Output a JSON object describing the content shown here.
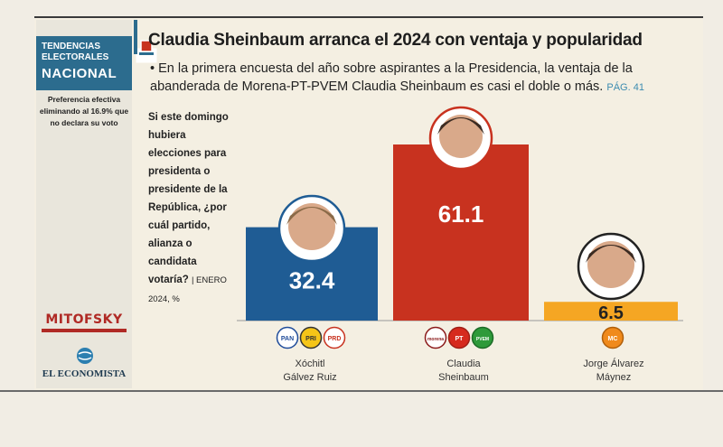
{
  "brand": {
    "line1": "TENDENCIAS",
    "line2": "ELECTORALES",
    "line3": "NACIONAL"
  },
  "preference_note": "Preferencia efectiva eliminando al 16.9% que no declara su voto",
  "title": "Claudia Sheinbaum arranca el 2024 con ventaja y popularidad",
  "subtitle": "• En la primera encuesta del año sobre aspirantes a la Presidencia, la ventaja de la abanderada de Morena-PT-PVEM Claudia Sheinbaum es casi el doble o más.",
  "page_ref": "PÁG. 41",
  "question": "Si este domingo hubiera elecciones para presidenta o presidente de la República, ¿por cuál partido, alianza o candidata votaría?",
  "question_note": "| ENERO 2024, %",
  "sources": {
    "pollster": "MITOFSKY",
    "outlet": "EL ECONOMISTA"
  },
  "colors": {
    "galvez": "#1f5c94",
    "sheinbaum": "#c8321f",
    "maynez": "#f5a623",
    "brand": "#2c6c8e"
  },
  "chart_data": {
    "type": "bar",
    "categories": [
      "Xóchitl Gálvez Ruiz",
      "Claudia Sheinbaum",
      "Jorge Álvarez Máynez"
    ],
    "values": [
      32.4,
      61.1,
      6.5
    ],
    "value_labels": [
      "32.4",
      "61.1",
      "6.5"
    ],
    "ylim": [
      0,
      70
    ],
    "parties": [
      [
        "PAN",
        "PRI",
        "PRD"
      ],
      [
        "morena",
        "PT",
        "PVEM"
      ],
      [
        "MC"
      ]
    ]
  },
  "candidates": [
    {
      "line1": "Xóchitl",
      "line2": "Gálvez Ruiz"
    },
    {
      "line1": "Claudia",
      "line2": "Sheinbaum"
    },
    {
      "line1": "Jorge Álvarez",
      "line2": "Máynez"
    }
  ]
}
